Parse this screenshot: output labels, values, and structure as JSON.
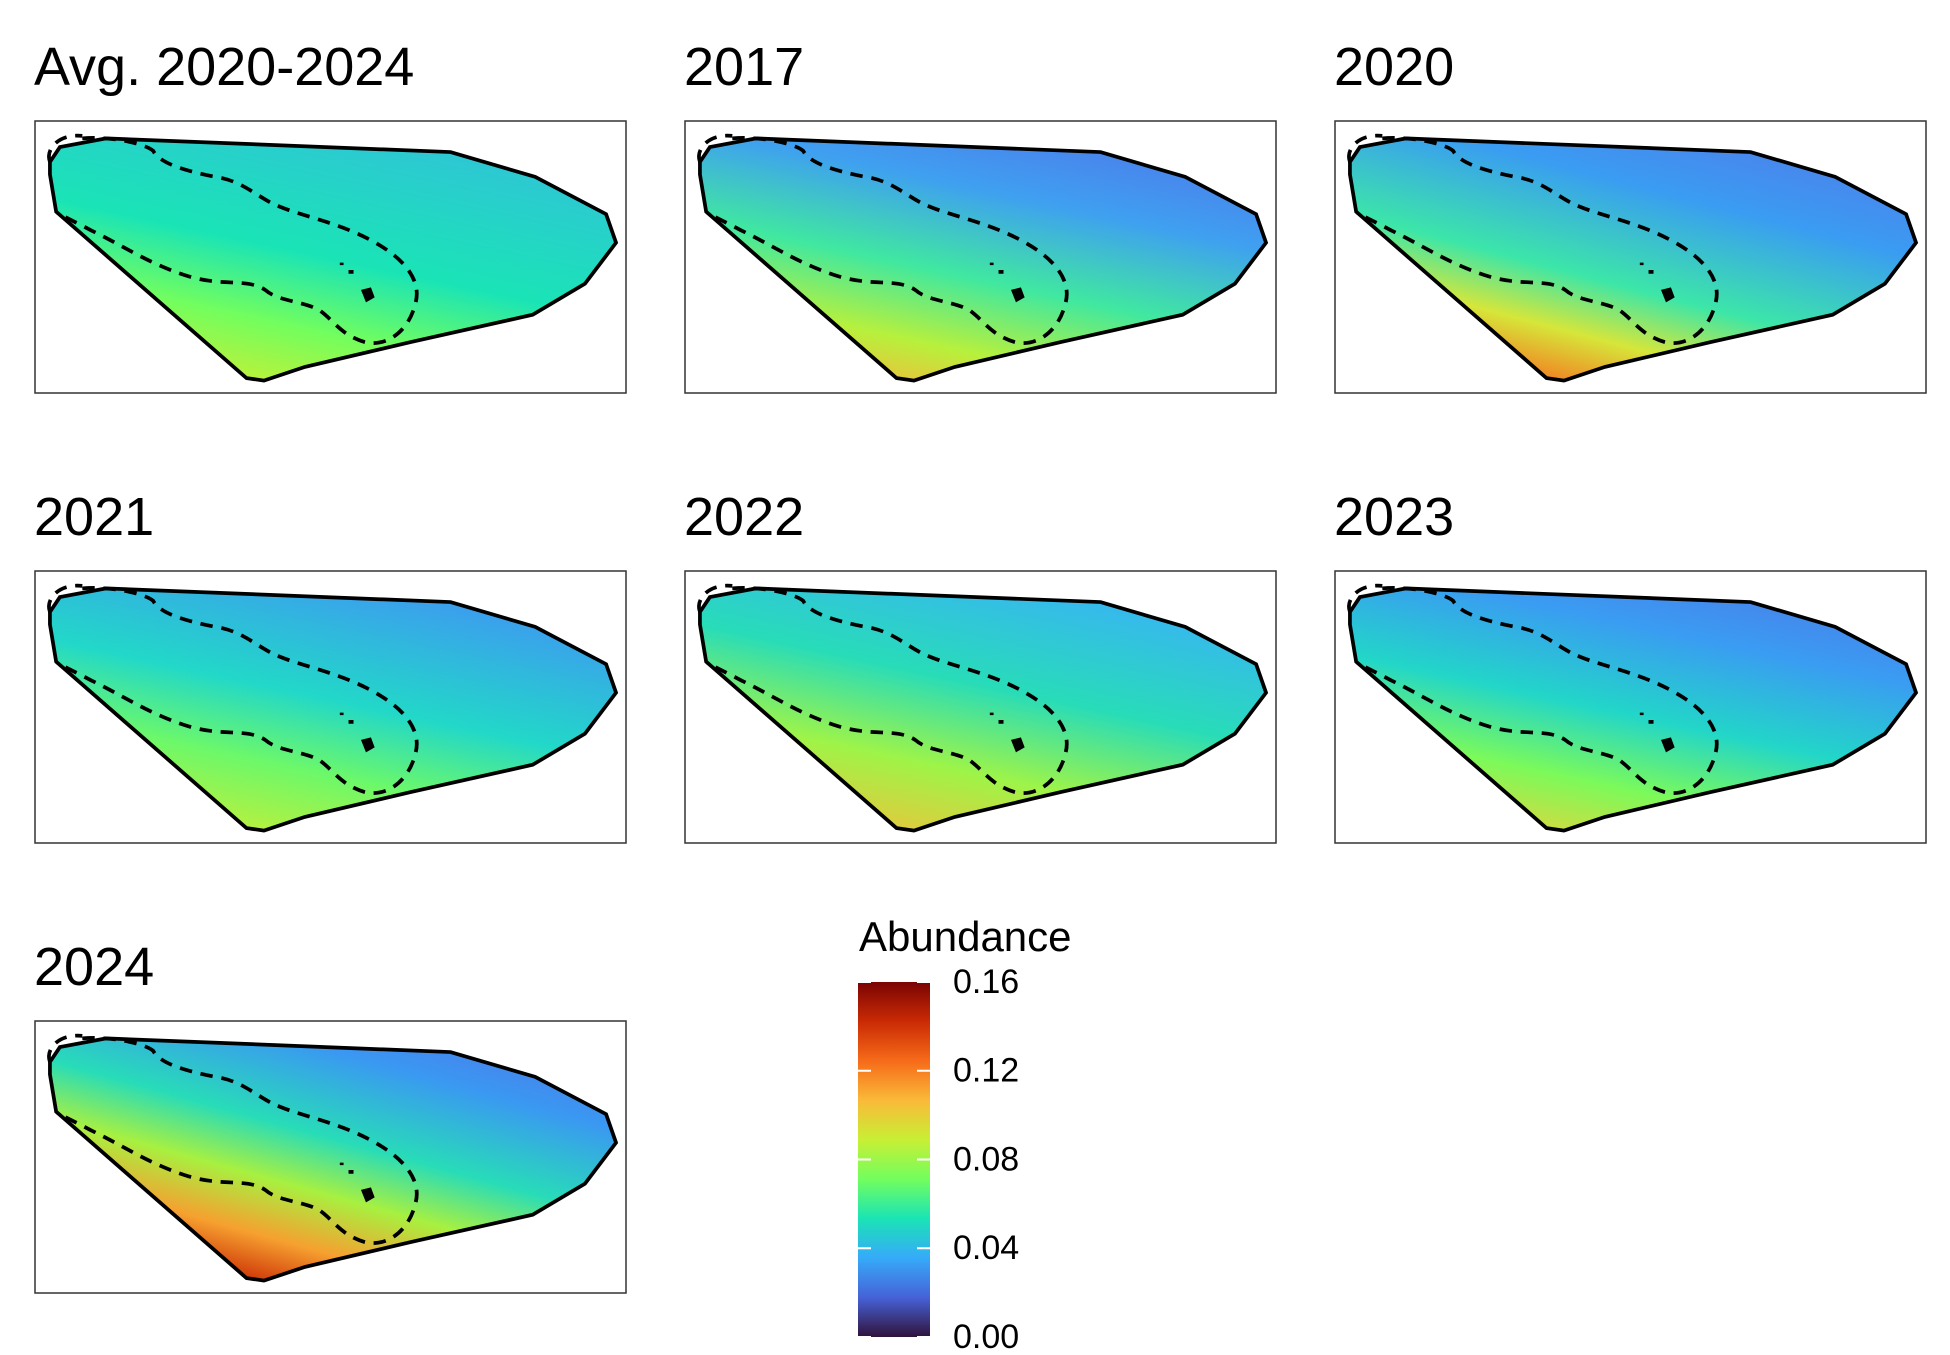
{
  "panels": [
    {
      "title": "Avg. 2020-2024"
    },
    {
      "title": "2017"
    },
    {
      "title": "2020"
    },
    {
      "title": "2021"
    },
    {
      "title": "2022"
    },
    {
      "title": "2023"
    },
    {
      "title": "2024"
    }
  ],
  "legend": {
    "title": "Abundance",
    "lim": [
      0,
      0.16
    ],
    "ticks": [
      {
        "value": 0,
        "label": "0.00"
      },
      0.04,
      0.08,
      0.12,
      0.16
    ],
    "colorscale": [
      "#30123b",
      "#4662d7",
      "#36aaf9",
      "#1ae4b6",
      "#72fe5e",
      "#c8ef34",
      "#faba39",
      "#f66b19",
      "#ca2a04",
      "#7a0403"
    ]
  }
}
